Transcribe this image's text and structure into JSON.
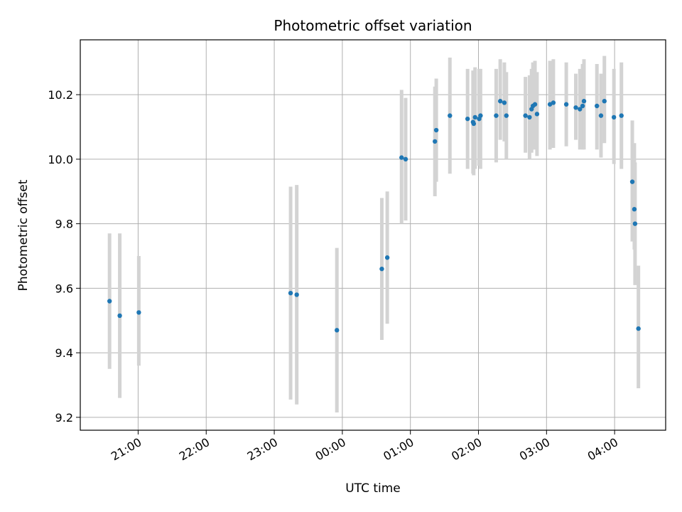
{
  "chart_data": {
    "type": "scatter",
    "title": "Photometric offset variation",
    "xlabel": "UTC time",
    "ylabel": "Photometric offset",
    "x_unit": "UTC time (hours since 20:00 of first night)",
    "x_tick_values": [
      1,
      2,
      3,
      4,
      5,
      6,
      7,
      8
    ],
    "x_tick_labels": [
      "21:00",
      "22:00",
      "23:00",
      "00:00",
      "01:00",
      "02:00",
      "03:00",
      "04:00"
    ],
    "xlim_labels": [
      "20:10",
      "04:50"
    ],
    "xlim": [
      0.15,
      8.75
    ],
    "y_ticks": [
      9.2,
      9.4,
      9.6,
      9.8,
      10.0,
      10.2
    ],
    "y_tick_labels": [
      "9.2",
      "9.4",
      "9.6",
      "9.8",
      "10.0",
      "10.2"
    ],
    "ylim": [
      9.16,
      10.37
    ],
    "grid": true,
    "colors": {
      "points": "#1f77b4",
      "errorbars": "#d3d3d3",
      "grid": "#b0b0b0"
    },
    "series": [
      {
        "x": [
          0.58,
          0.73,
          1.01,
          3.24,
          3.33,
          3.92,
          4.58,
          4.66,
          4.87,
          4.93,
          5.36,
          5.38,
          5.58,
          5.84,
          5.92,
          5.93,
          5.95,
          6.01,
          6.03,
          6.26,
          6.32,
          6.38,
          6.41,
          6.69,
          6.75,
          6.78,
          6.8,
          6.83,
          6.86,
          7.05,
          7.1,
          7.29,
          7.43,
          7.49,
          7.53,
          7.55,
          7.74,
          7.8,
          7.85,
          7.99,
          8.1,
          8.26,
          8.29,
          8.3,
          8.35
        ],
        "y": [
          9.56,
          9.515,
          9.525,
          9.585,
          9.58,
          9.47,
          9.66,
          9.695,
          10.005,
          10.0,
          10.055,
          10.09,
          10.135,
          10.125,
          10.115,
          10.11,
          10.13,
          10.125,
          10.135,
          10.135,
          10.18,
          10.175,
          10.135,
          10.135,
          10.13,
          10.155,
          10.165,
          10.17,
          10.14,
          10.17,
          10.175,
          10.17,
          10.16,
          10.155,
          10.165,
          10.18,
          10.165,
          10.135,
          10.18,
          10.13,
          10.135,
          9.93,
          9.845,
          9.8,
          9.475
        ],
        "err_low": [
          9.35,
          9.26,
          9.36,
          9.255,
          9.24,
          9.215,
          9.44,
          9.49,
          9.8,
          9.81,
          9.885,
          9.93,
          9.955,
          9.97,
          9.955,
          9.95,
          9.97,
          9.98,
          9.97,
          9.99,
          10.06,
          10.055,
          10.0,
          10.02,
          10.0,
          10.02,
          10.03,
          10.03,
          10.01,
          10.03,
          10.035,
          10.04,
          10.06,
          10.03,
          10.03,
          10.03,
          10.03,
          10.005,
          10.05,
          9.985,
          9.97,
          9.745,
          9.72,
          9.61,
          9.29
        ],
        "err_high": [
          9.77,
          9.77,
          9.7,
          9.915,
          9.92,
          9.725,
          9.88,
          9.9,
          10.215,
          10.19,
          10.225,
          10.25,
          10.315,
          10.28,
          10.275,
          10.265,
          10.285,
          10.28,
          10.28,
          10.28,
          10.31,
          10.3,
          10.27,
          10.255,
          10.26,
          10.28,
          10.3,
          10.305,
          10.27,
          10.305,
          10.31,
          10.3,
          10.265,
          10.28,
          10.295,
          10.31,
          10.295,
          10.265,
          10.32,
          10.28,
          10.3,
          10.12,
          10.05,
          9.99,
          9.67
        ]
      }
    ]
  }
}
